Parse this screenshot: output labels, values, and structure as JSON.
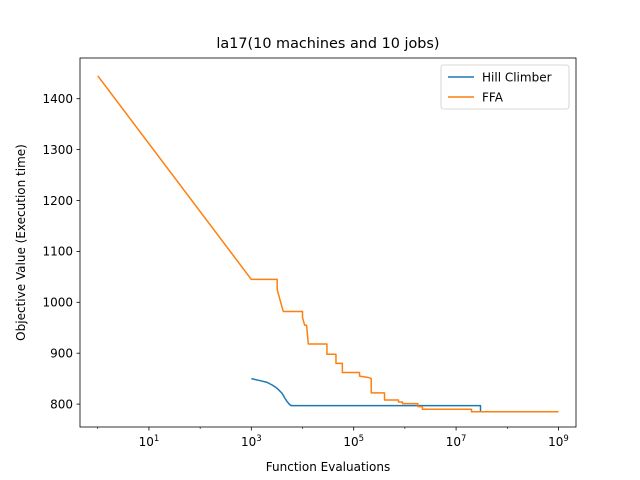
{
  "chart_data": {
    "type": "line",
    "title": "la17(10 machines and 10 jobs)",
    "xlabel": "Function Evaluations",
    "ylabel": "Objective Value (Execution time)",
    "xscale": "log",
    "xlim": [
      0.45,
      2200000000.0
    ],
    "ylim": [
      755,
      1480
    ],
    "x_ticks": [
      {
        "value": 10,
        "base": "10",
        "exp": "1"
      },
      {
        "value": 1000,
        "base": "10",
        "exp": "3"
      },
      {
        "value": 100000,
        "base": "10",
        "exp": "5"
      },
      {
        "value": 10000000,
        "base": "10",
        "exp": "7"
      },
      {
        "value": 1000000000,
        "base": "10",
        "exp": "9"
      }
    ],
    "y_ticks": [
      800,
      900,
      1000,
      1100,
      1200,
      1300,
      1400
    ],
    "grid": false,
    "legend_position": "top-right",
    "series": [
      {
        "name": "Hill Climber",
        "color": "#1f77b4",
        "points": [
          [
            1000,
            850
          ],
          [
            1500,
            846
          ],
          [
            2000,
            843
          ],
          [
            2500,
            838
          ],
          [
            3000,
            833
          ],
          [
            3500,
            827
          ],
          [
            4000,
            821
          ],
          [
            4500,
            812
          ],
          [
            5000,
            805
          ],
          [
            5500,
            800
          ],
          [
            6000,
            797
          ],
          [
            7000,
            797
          ],
          [
            100000,
            797
          ],
          [
            1000000,
            797
          ],
          [
            10000000,
            797
          ],
          [
            30000000,
            797
          ],
          [
            30000000,
            785
          ],
          [
            100000000,
            785
          ],
          [
            1000000000,
            785
          ]
        ]
      },
      {
        "name": "FFA",
        "color": "#ff7f0e",
        "points": [
          [
            1,
            1445
          ],
          [
            1000,
            1045
          ],
          [
            3200,
            1045
          ],
          [
            3200,
            1025
          ],
          [
            4200,
            982
          ],
          [
            10000,
            982
          ],
          [
            10000,
            970
          ],
          [
            11000,
            955
          ],
          [
            12000,
            955
          ],
          [
            13000,
            918
          ],
          [
            30000,
            918
          ],
          [
            30000,
            898
          ],
          [
            45000,
            898
          ],
          [
            45000,
            880
          ],
          [
            60000,
            880
          ],
          [
            60000,
            862
          ],
          [
            130000,
            862
          ],
          [
            130000,
            855
          ],
          [
            200000,
            852
          ],
          [
            220000,
            850
          ],
          [
            220000,
            822
          ],
          [
            400000,
            822
          ],
          [
            400000,
            808
          ],
          [
            750000,
            808
          ],
          [
            750000,
            804
          ],
          [
            900000,
            804
          ],
          [
            900000,
            801
          ],
          [
            1800000,
            801
          ],
          [
            1800000,
            795
          ],
          [
            2200000,
            795
          ],
          [
            2200000,
            790
          ],
          [
            20000000,
            790
          ],
          [
            20000000,
            785
          ],
          [
            1000000000,
            785
          ]
        ]
      }
    ]
  }
}
